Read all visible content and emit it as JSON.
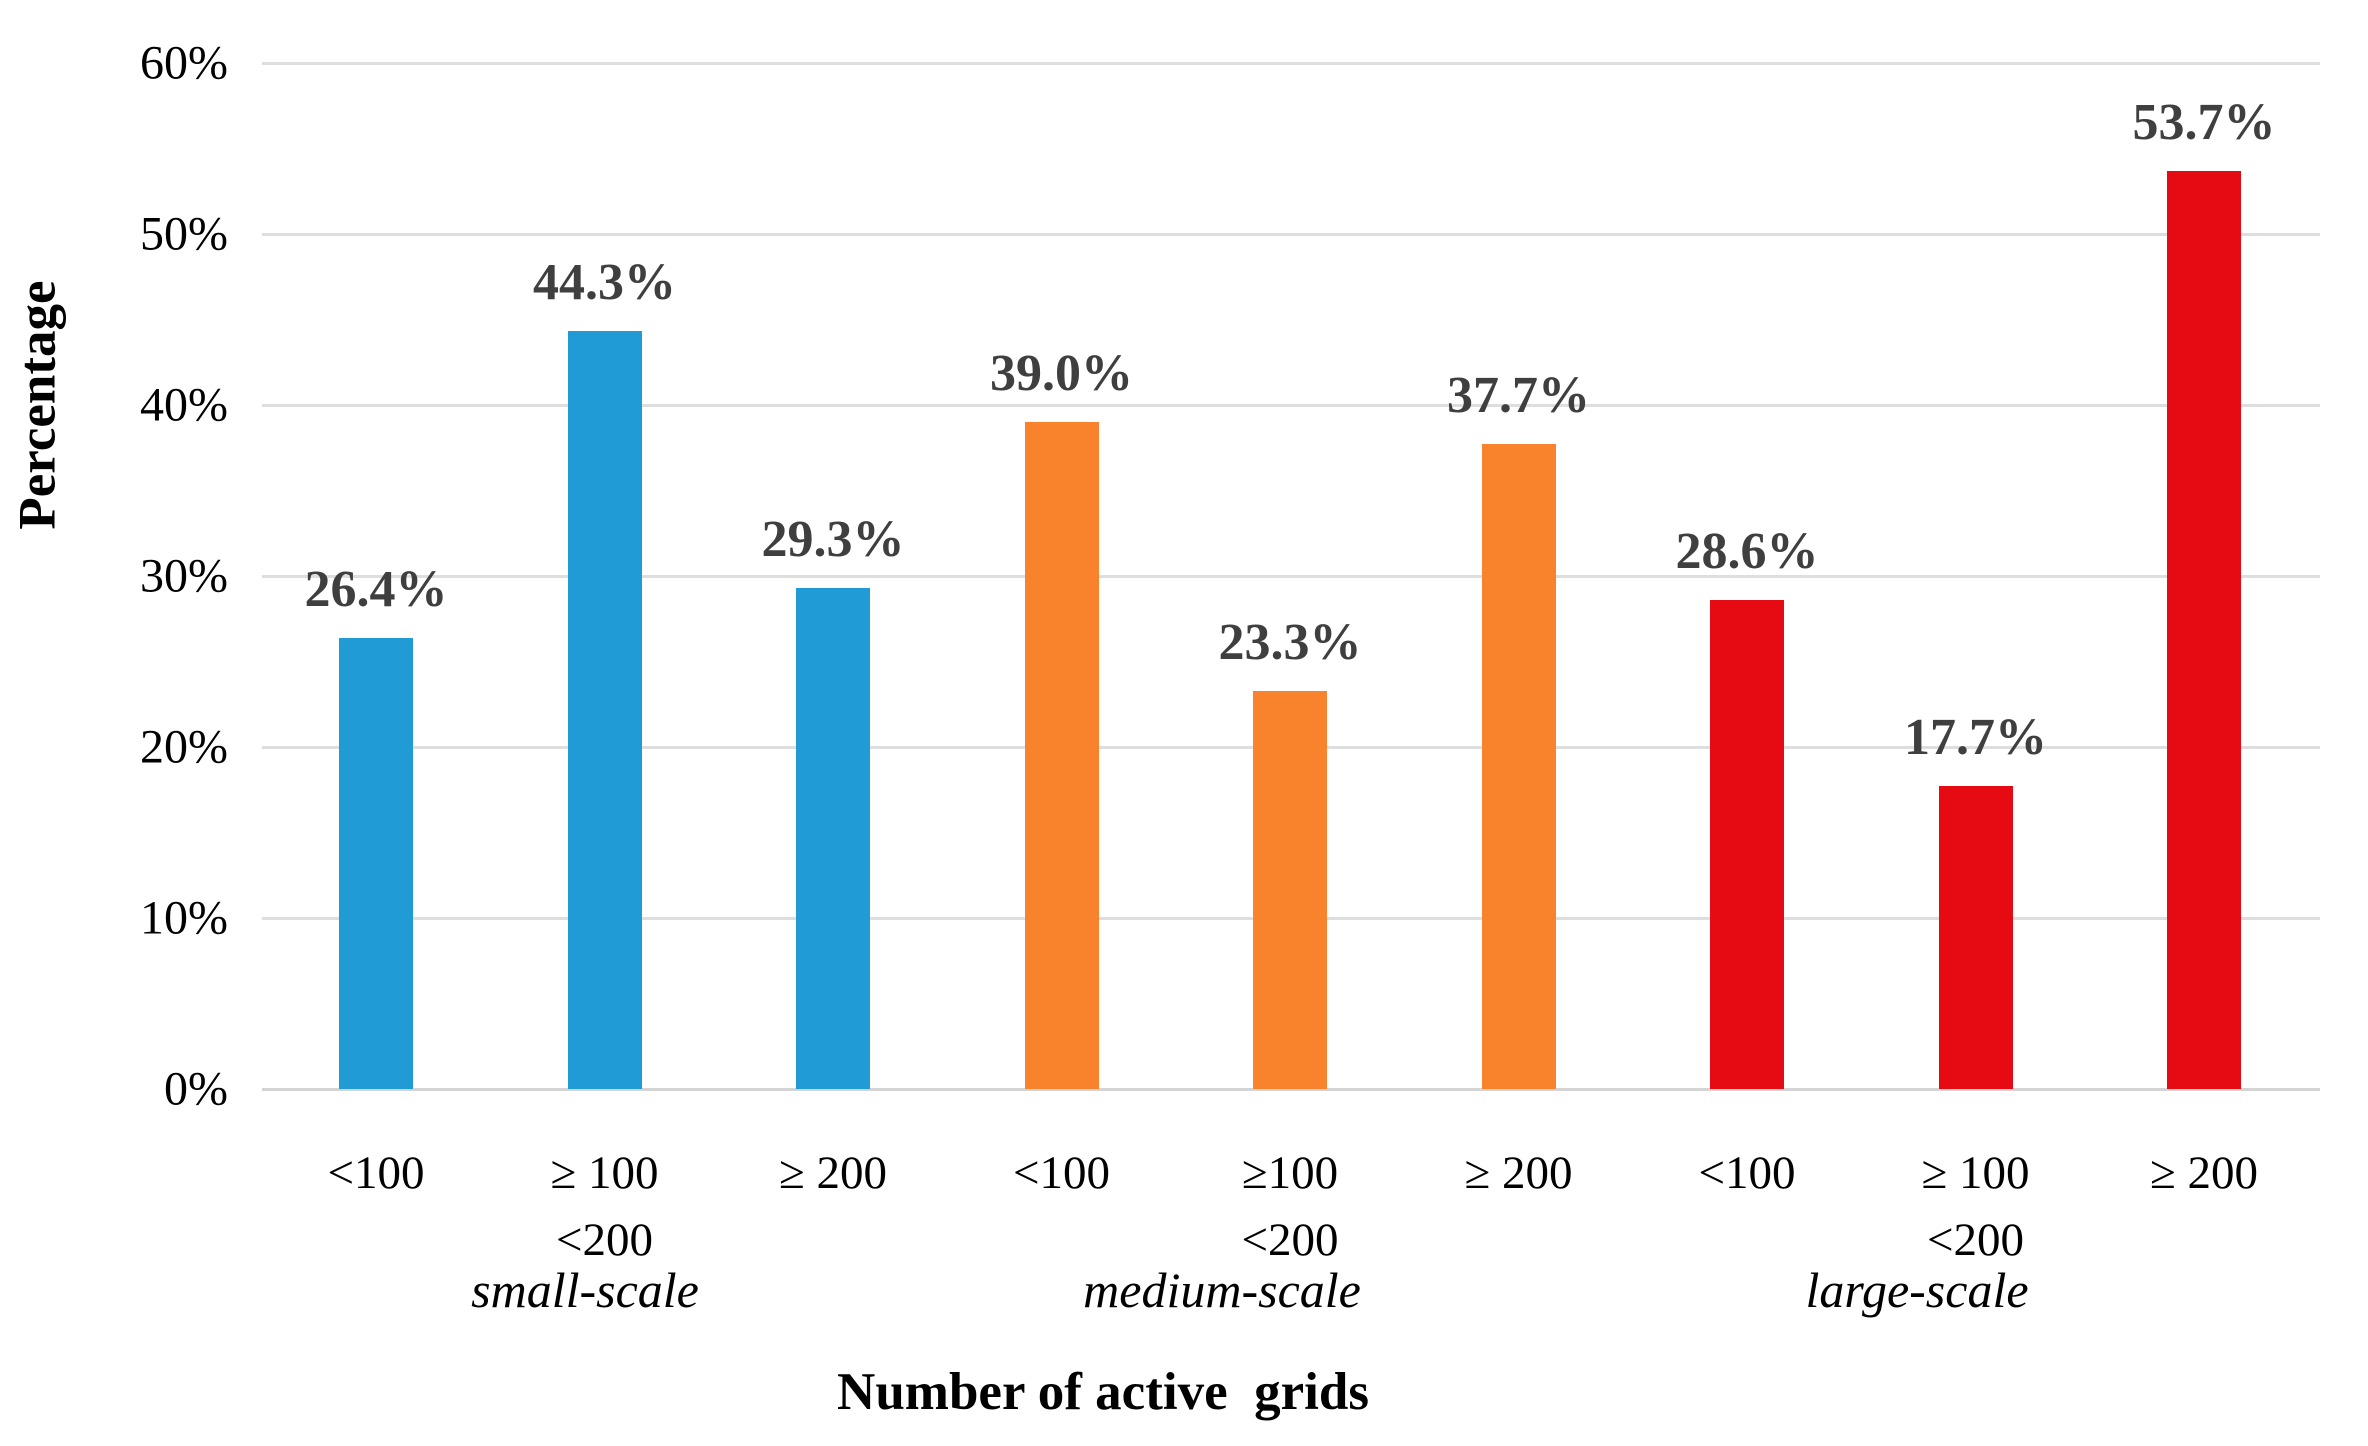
{
  "chart_data": {
    "type": "bar",
    "title": "",
    "xlabel": "Number of active  grids",
    "ylabel": "Percentage",
    "ylim": [
      0,
      60
    ],
    "ytick_step": 10,
    "ytick_labels": [
      "0%",
      "10%",
      "20%",
      "30%",
      "40%",
      "50%",
      "60%"
    ],
    "grid": true,
    "legend_position": "none",
    "colors": {
      "small_scale": "#219bd5",
      "medium_scale": "#f9832c",
      "large_scale": "#e60b12",
      "value_label": "#3f3f3f",
      "gridline": "#dedede"
    },
    "groups": [
      {
        "name": "small-scale",
        "color": "#219bd5",
        "bars": [
          {
            "category": "<100",
            "value": 26.4,
            "display": "26.4%"
          },
          {
            "category": "≥ 100\n<200",
            "value": 44.3,
            "display": "44.3%"
          },
          {
            "category": "≥ 200",
            "value": 29.3,
            "display": "29.3%"
          }
        ]
      },
      {
        "name": "medium-scale",
        "color": "#f9832c",
        "bars": [
          {
            "category": "<100",
            "value": 39.0,
            "display": "39.0%"
          },
          {
            "category": "≥100\n<200",
            "value": 23.3,
            "display": "23.3%"
          },
          {
            "category": "≥ 200",
            "value": 37.7,
            "display": "37.7%"
          }
        ]
      },
      {
        "name": "large-scale",
        "color": "#e60b12",
        "bars": [
          {
            "category": "<100",
            "value": 28.6,
            "display": "28.6%"
          },
          {
            "category": "≥ 100\n<200",
            "value": 17.7,
            "display": "17.7%"
          },
          {
            "category": "≥ 200",
            "value": 53.7,
            "display": "53.7%"
          }
        ]
      }
    ]
  }
}
